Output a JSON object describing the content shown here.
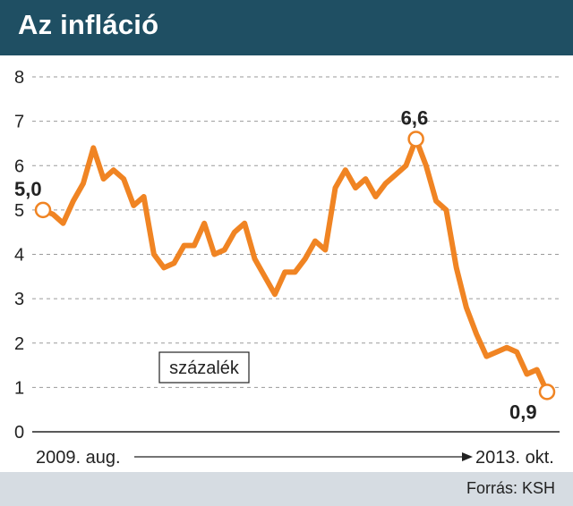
{
  "header": {
    "title": "Az infláció"
  },
  "footer": {
    "source": "Forrás: KSH"
  },
  "colors": {
    "header_bg": "#1f4f63",
    "line": "#f08423",
    "footer_bg": "#d6dce2"
  },
  "chart_data": {
    "type": "line",
    "title": "Az infláció",
    "unit_label": "százalék",
    "x_start_label": "2009. aug.",
    "x_end_label": "2013. okt.",
    "ylim": [
      0,
      8
    ],
    "yticks": [
      0,
      1,
      2,
      3,
      4,
      5,
      6,
      7,
      8
    ],
    "grid": "horizontal dashed",
    "series": [
      {
        "values": [
          5.0,
          4.9,
          4.7,
          5.2,
          5.6,
          6.4,
          5.7,
          5.9,
          5.7,
          5.1,
          5.3,
          4.0,
          3.7,
          3.8,
          4.2,
          4.2,
          4.7,
          4.0,
          4.1,
          4.5,
          4.7,
          3.9,
          3.5,
          3.1,
          3.6,
          3.6,
          3.9,
          4.3,
          4.1,
          5.5,
          5.9,
          5.5,
          5.7,
          5.3,
          5.6,
          5.8,
          6.0,
          6.6,
          6.0,
          5.2,
          5.0,
          3.7,
          2.8,
          2.2,
          1.7,
          1.8,
          1.9,
          1.8,
          1.3,
          1.4,
          0.9
        ]
      }
    ],
    "annotations": [
      {
        "index": 0,
        "label": "5,0"
      },
      {
        "index": 37,
        "label": "6,6"
      },
      {
        "index": 50,
        "label": "0,9"
      }
    ]
  }
}
